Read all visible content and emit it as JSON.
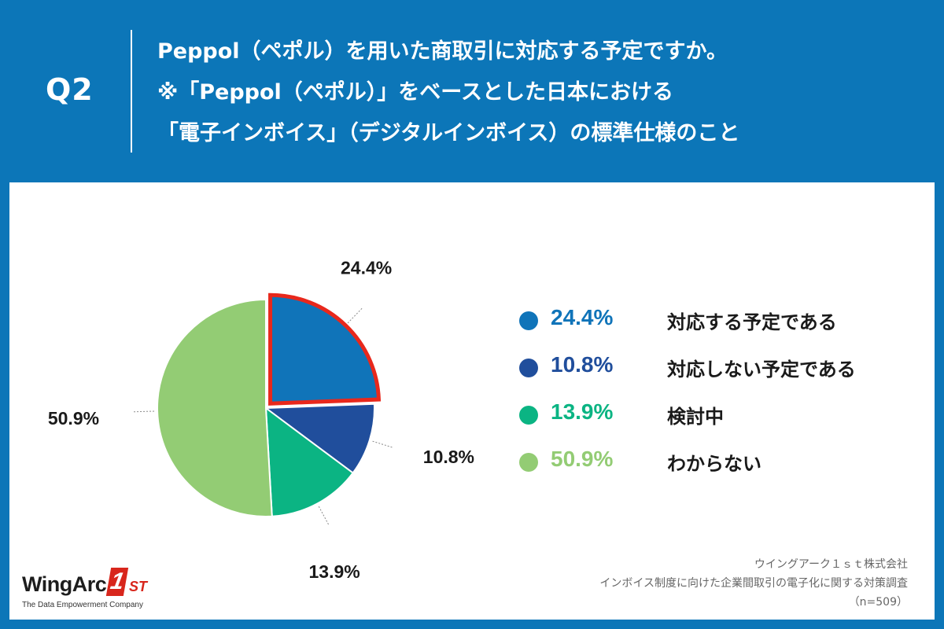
{
  "header": {
    "q_label": "Q2",
    "question_lines": [
      "Peppol（ペポル）を用いた商取引に対応する予定ですか。",
      "※「Peppol（ペポル）」をベースとした日本における",
      "「電子インボイス」（デジタルインボイス）の標準仕様のこと"
    ]
  },
  "colors": {
    "frame": "#0c76b8",
    "highlight_outline": "#e8281c"
  },
  "chart_data": {
    "type": "pie",
    "start_angle_deg": 0,
    "direction": "clockwise",
    "highlighted_slice": 0,
    "slices": [
      {
        "label": "対応する予定である",
        "value": 24.4,
        "display": "24.4%",
        "color": "#1074b9"
      },
      {
        "label": "対応しない予定である",
        "value": 10.8,
        "display": "10.8%",
        "color": "#204e9c"
      },
      {
        "label": "検討中",
        "value": 13.9,
        "display": "13.9%",
        "color": "#0bb483"
      },
      {
        "label": "わからない",
        "value": 50.9,
        "display": "50.9%",
        "color": "#93cc74"
      }
    ]
  },
  "logo": {
    "word": "WingArc",
    "one": "1",
    "st": "ST",
    "tagline": "The Data Empowerment Company"
  },
  "source": {
    "lines": [
      "ウイングアーク１ｓｔ株式会社",
      "インボイス制度に向けた企業間取引の電子化に関する対策調査",
      "（n=509）"
    ]
  }
}
